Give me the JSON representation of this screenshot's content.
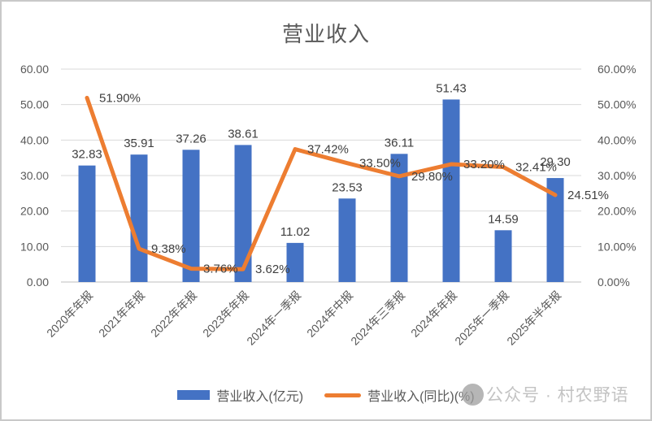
{
  "chart_data": {
    "type": "bar+line",
    "title": "营业收入",
    "categories": [
      "2020年年报",
      "2021年年报",
      "2022年年报",
      "2023年年报",
      "2024年一季报",
      "2024年中报",
      "2024年三季报",
      "2024年年报",
      "2025年一季报",
      "2025年半年报"
    ],
    "series": [
      {
        "name": "营业收入(亿元)",
        "type": "bar",
        "values": [
          32.83,
          35.91,
          37.26,
          38.61,
          11.02,
          23.53,
          36.11,
          51.43,
          14.59,
          29.3
        ],
        "color": "#4472C4"
      },
      {
        "name": "营业收入(同比)(%)",
        "type": "line",
        "values": [
          51.9,
          9.38,
          3.76,
          3.62,
          37.42,
          33.5,
          29.8,
          33.2,
          32.41,
          24.51
        ],
        "color": "#ED7D31",
        "label_suffix": "%"
      }
    ],
    "left_axis": {
      "min": 0,
      "max": 60,
      "ticks": [
        "60.00",
        "50.00",
        "40.00",
        "30.00",
        "20.00",
        "10.00",
        "0.00"
      ]
    },
    "right_axis": {
      "min": 0,
      "max": 60,
      "ticks": [
        "60.00%",
        "50.00%",
        "40.00%",
        "30.00%",
        "20.00%",
        "10.00%",
        "0.00%"
      ]
    },
    "grid": true,
    "legend_position": "bottom",
    "bar_label_dy": [
      0,
      0,
      0,
      0,
      0,
      0,
      0,
      0,
      0,
      -6
    ]
  },
  "legend": {
    "bar_label": "营业收入(亿元)",
    "line_label": "营业收入(同比)(%)"
  },
  "watermark": {
    "text": "公众号 · 村农野语"
  },
  "colors": {
    "bar": "#4472C4",
    "line": "#ED7D31",
    "grid": "#D9D9D9",
    "axis_line": "#BFBFBF",
    "axis_text": "#595959",
    "data_label": "#404040",
    "category_text": "#595959",
    "watermark_text": "#C3C3C3",
    "watermark_circle": "#9E9E9E"
  }
}
